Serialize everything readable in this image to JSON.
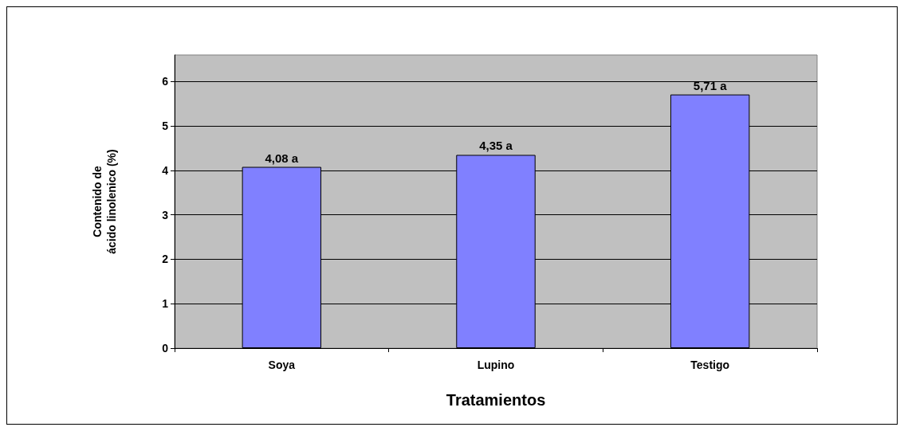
{
  "chart_data": {
    "type": "bar",
    "xlabel": "Tratamientos",
    "ylabel": "Contenido de\nácido linolenico (%)",
    "categories": [
      "Soya",
      "Lupino",
      "Testigo"
    ],
    "values": [
      4.08,
      4.35,
      5.71
    ],
    "value_labels": [
      "4,08 a",
      "4,35 a",
      "5,71 a"
    ],
    "color": "#8080ff",
    "ylim": [
      0,
      6.6
    ],
    "yticks": [
      0,
      1,
      2,
      3,
      4,
      5,
      6
    ],
    "grid": "y"
  }
}
